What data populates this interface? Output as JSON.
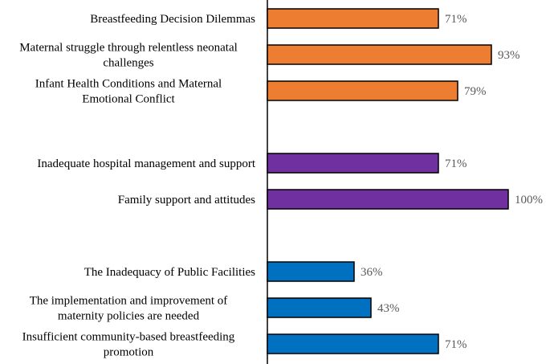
{
  "chart_data": {
    "type": "bar",
    "orientation": "horizontal",
    "title": "",
    "xlabel": "",
    "ylabel": "",
    "xlim": [
      0,
      100
    ],
    "grid": false,
    "legend": "none",
    "value_suffix": "%",
    "groups": [
      {
        "color": "#ED7D31",
        "items": [
          {
            "label_lines": [
              "Breastfeeding Decision Dilemmas"
            ],
            "value": 71,
            "value_label": "71%"
          },
          {
            "label_lines": [
              "Maternal struggle through relentless neonatal",
              "challenges"
            ],
            "value": 93,
            "value_label": "93%"
          },
          {
            "label_lines": [
              "Infant Health Conditions and Maternal",
              "Emotional Conflict"
            ],
            "value": 79,
            "value_label": "79%"
          }
        ]
      },
      {
        "color": "#7030A0",
        "items": [
          {
            "label_lines": [
              "Inadequate hospital management and support"
            ],
            "value": 71,
            "value_label": "71%"
          },
          {
            "label_lines": [
              "Family support and attitudes"
            ],
            "value": 100,
            "value_label": "100%"
          }
        ]
      },
      {
        "color": "#0070C0",
        "items": [
          {
            "label_lines": [
              "The Inadequacy of Public Facilities"
            ],
            "value": 36,
            "value_label": "36%"
          },
          {
            "label_lines": [
              "The implementation and improvement of",
              "maternity policies are needed"
            ],
            "value": 43,
            "value_label": "43%"
          },
          {
            "label_lines": [
              "Insufficient community-based breastfeeding",
              "promotion"
            ],
            "value": 71,
            "value_label": "71%"
          }
        ]
      }
    ]
  }
}
